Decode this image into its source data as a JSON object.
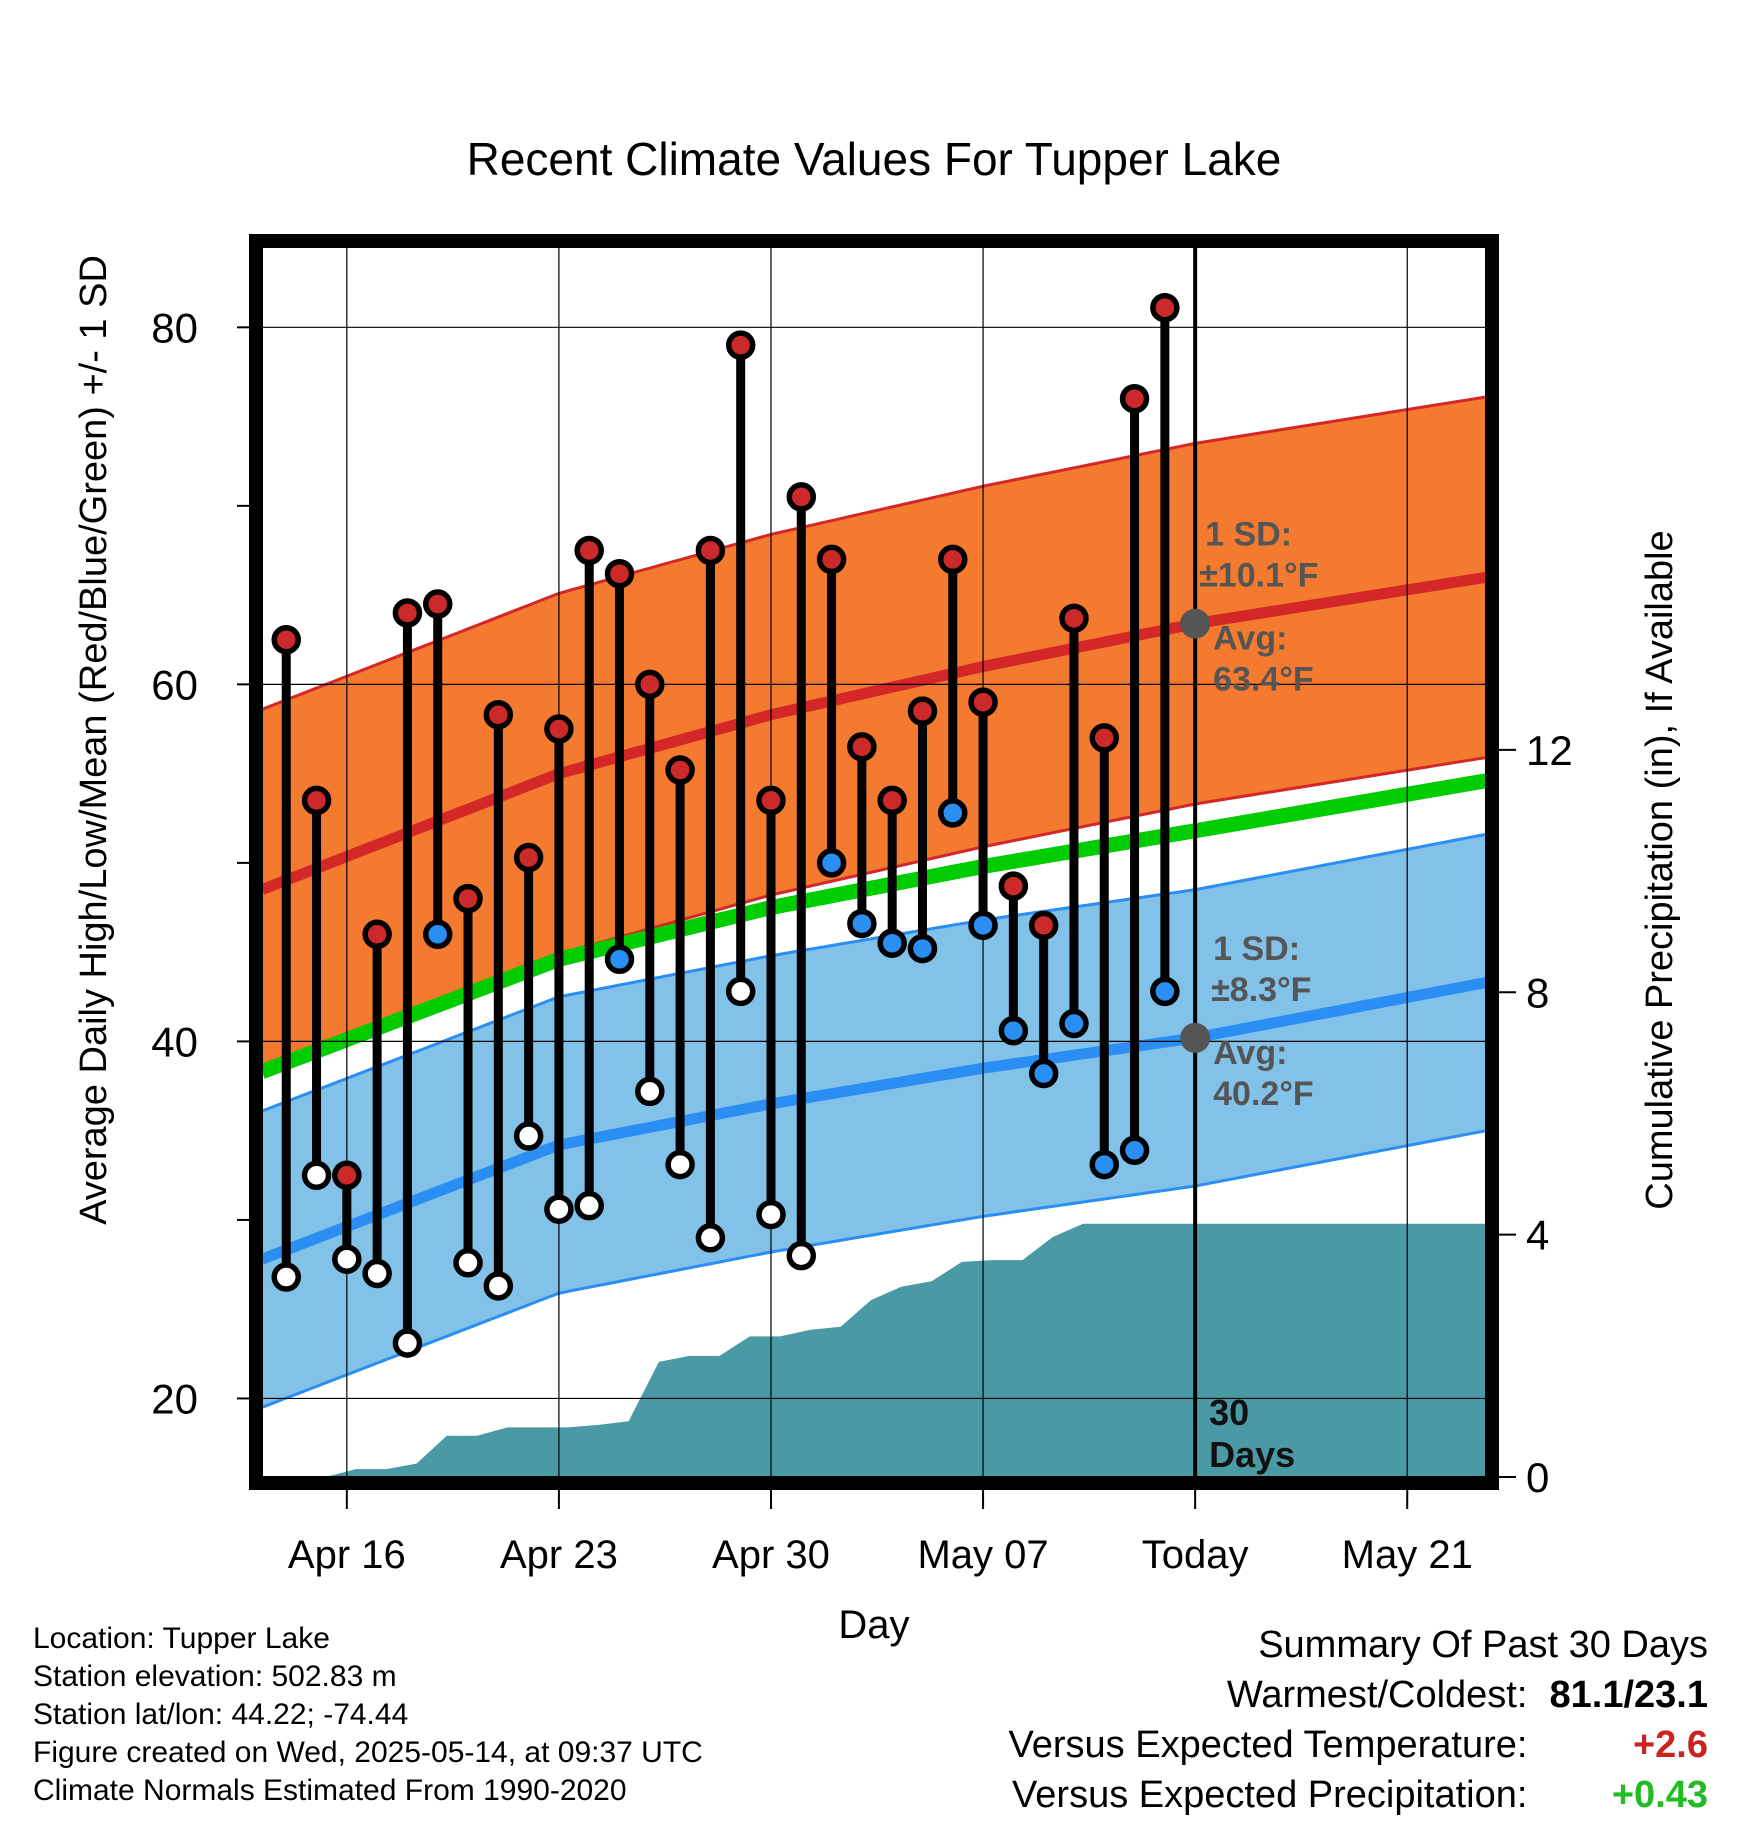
{
  "title": "Recent Climate Values For Tupper Lake",
  "chart_data": {
    "type": "line",
    "title": "Recent Climate Values For Tupper Lake",
    "xlabel": "Day",
    "ylabel_left": "Average Daily High/Low/Mean (Red/Blue/Green) +/- 1 SD",
    "ylabel_right": "Cumulative Precipitation (in), If Available",
    "ylim_left": [
      15.6,
      84.5
    ],
    "ylim_right": [
      0,
      20.3
    ],
    "y_ticks_left": [
      20,
      40,
      60,
      80
    ],
    "y_ticks_right": [
      0,
      4,
      8,
      12
    ],
    "x_ticks": [
      "Apr 16",
      "Apr 23",
      "Apr 30",
      "May 07",
      "Today",
      "May 21"
    ],
    "x_tick_days": [
      3,
      10,
      17,
      24,
      31,
      38
    ],
    "x_range_days": [
      0.2,
      40.6
    ],
    "grid": true,
    "days": [
      1,
      2,
      3,
      4,
      5,
      6,
      7,
      8,
      9,
      10,
      11,
      12,
      13,
      14,
      15,
      16,
      17,
      18,
      19,
      20,
      21,
      22,
      23,
      24,
      25,
      26,
      27,
      28,
      29,
      30
    ],
    "daily_high": [
      62.5,
      53.5,
      32.5,
      46,
      64,
      64.5,
      48,
      58.3,
      50.3,
      57.5,
      67.5,
      66.2,
      60,
      55.2,
      67.5,
      79,
      53.5,
      70.5,
      67,
      56.5,
      53.5,
      58.5,
      67,
      59,
      48.7,
      46.5,
      63.7,
      57,
      76,
      81.1
    ],
    "daily_low": [
      26.8,
      32.5,
      27.8,
      27,
      23.1,
      46,
      27.6,
      26.3,
      34.7,
      30.6,
      30.8,
      44.6,
      37.2,
      33.1,
      29,
      42.8,
      30.3,
      28,
      50,
      46.6,
      45.5,
      45.2,
      52.8,
      46.5,
      40.6,
      38.2,
      41,
      33.1,
      33.9,
      42.8
    ],
    "low_marker_colors": [
      "black",
      "black",
      "black",
      "black",
      "black",
      "blue",
      "black",
      "black",
      "black",
      "black",
      "black",
      "blue",
      "black",
      "black",
      "black",
      "black",
      "black",
      "black",
      "blue",
      "blue",
      "blue",
      "blue",
      "blue",
      "blue",
      "blue",
      "blue",
      "blue",
      "blue",
      "blue",
      "blue"
    ],
    "normals_days": [
      0.2,
      10,
      17,
      24,
      31,
      40.6
    ],
    "normal_high": [
      48.5,
      55,
      58.3,
      61,
      63.4,
      66
    ],
    "normal_mean": [
      38.3,
      44.6,
      47.5,
      49.8,
      51.8,
      54.6
    ],
    "normal_low": [
      27.8,
      34.2,
      36.5,
      38.5,
      40.2,
      43.3
    ],
    "sd_high": 10.1,
    "sd_low": 8.3,
    "precip_days": [
      0.2,
      2.3,
      3.3,
      4.3,
      5.3,
      6.3,
      7.3,
      8.3,
      9.3,
      10.3,
      11.3,
      12.3,
      13.3,
      14.3,
      15.3,
      16.3,
      17.3,
      18.3,
      19.3,
      20.3,
      21.3,
      22.3,
      23.3,
      24.3,
      25.3,
      26.3,
      27.3,
      28.3,
      29.3,
      30.3,
      31.3,
      40.6
    ],
    "precip_cum": [
      0,
      0,
      0.13,
      0.13,
      0.22,
      0.68,
      0.68,
      0.82,
      0.82,
      0.82,
      0.86,
      0.92,
      1.9,
      2.0,
      2.0,
      2.32,
      2.32,
      2.43,
      2.48,
      2.92,
      3.14,
      3.23,
      3.55,
      3.58,
      3.58,
      3.96,
      4.18,
      4.18,
      4.18,
      4.18,
      4.18,
      4.18
    ],
    "today_day": 31,
    "today_avg_high": 63.4,
    "today_avg_low": 40.2,
    "period_label": "30 Days",
    "colors": {
      "high_band": "#f37a2e",
      "high_line": "#d42828",
      "low_band": "#82c1e8",
      "low_line": "#2a8ef2",
      "mean_line": "#00cc00",
      "precip": "#4a9aa5",
      "high_marker": "#cc2a2a",
      "low_marker_blue": "#2a8ef2",
      "annotation": "#555555"
    },
    "annotations": {
      "sd_high_label": "1 SD:",
      "sd_high_value": "±10.1°F",
      "avg_high_label": "Avg:",
      "avg_high_value": "63.4°F",
      "sd_low_label": "1 SD:",
      "sd_low_value": "±8.3°F",
      "avg_low_label": "Avg:",
      "avg_low_value": "40.2°F"
    }
  },
  "info": {
    "location": "Location: Tupper Lake",
    "elevation": "Station elevation: 502.83 m",
    "latlon": "Station lat/lon: 44.22; -74.44",
    "created": "Figure created on Wed, 2025-05-14, at 09:37 UTC",
    "normals": "Climate Normals Estimated From 1990-2020"
  },
  "summary": {
    "heading": "Summary Of Past 30 Days",
    "warm_cold_label": "Warmest/Coldest:",
    "warm_cold_value": "81.1/23.1",
    "temp_label": "Versus Expected Temperature:",
    "temp_value": "+2.6",
    "precip_label": "Versus Expected Precipitation:",
    "precip_value": "+0.43"
  }
}
